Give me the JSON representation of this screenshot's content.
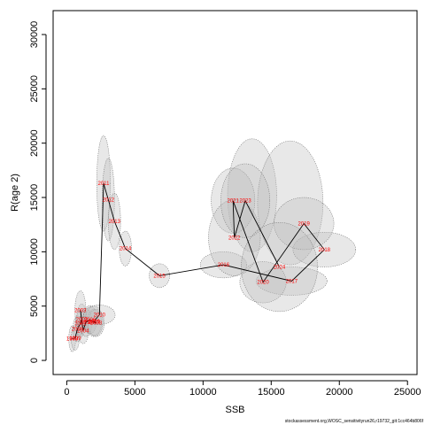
{
  "chart_data": {
    "type": "scatter",
    "xlabel": "SSB",
    "ylabel": "R(age 2)",
    "xlim": [
      -1000,
      25700
    ],
    "ylim": [
      -1300,
      32200
    ],
    "xticks": [
      0,
      5000,
      10000,
      15000,
      20000,
      25000
    ],
    "yticks": [
      0,
      5000,
      10000,
      15000,
      20000,
      25000,
      30000
    ],
    "grid": false,
    "colors": {
      "path": "#000000",
      "labels": "#ff0000",
      "ellipse_fill": "#bdbdbd",
      "ellipse_stroke": "#7a7a7a"
    },
    "points": [
      {
        "year": "1998",
        "ssb": 400,
        "r": 2000,
        "rx_sd": 250,
        "ry_sd": 1200
      },
      {
        "year": "1999",
        "ssb": 620,
        "r": 2050,
        "rx_sd": 300,
        "ry_sd": 1100
      },
      {
        "year": "2000",
        "ssb": 780,
        "r": 2900,
        "rx_sd": 320,
        "ry_sd": 1200
      },
      {
        "year": "2001",
        "ssb": 1000,
        "r": 3400,
        "rx_sd": 340,
        "ry_sd": 1300
      },
      {
        "year": "2002",
        "ssb": 1100,
        "r": 3800,
        "rx_sd": 350,
        "ry_sd": 1400
      },
      {
        "year": "2003",
        "ssb": 1000,
        "r": 4600,
        "rx_sd": 400,
        "ry_sd": 1800
      },
      {
        "year": "2004",
        "ssb": 1200,
        "r": 2750,
        "rx_sd": 400,
        "ry_sd": 1200
      },
      {
        "year": "2005",
        "ssb": 1400,
        "r": 3500,
        "rx_sd": 450,
        "ry_sd": 1300
      },
      {
        "year": "2006",
        "ssb": 1700,
        "r": 3750,
        "rx_sd": 500,
        "ry_sd": 1300
      },
      {
        "year": "2007",
        "ssb": 2000,
        "r": 3500,
        "rx_sd": 550,
        "ry_sd": 1200
      },
      {
        "year": "2008",
        "ssb": 2150,
        "r": 3450,
        "rx_sd": 600,
        "ry_sd": 1250
      },
      {
        "year": "2009",
        "ssb": 2000,
        "r": 3600,
        "rx_sd": 650,
        "ry_sd": 1400
      },
      {
        "year": "2010",
        "ssb": 2400,
        "r": 4200,
        "rx_sd": 1150,
        "ry_sd": 900
      },
      {
        "year": "2011",
        "ssb": 2700,
        "r": 16300,
        "rx_sd": 500,
        "ry_sd": 4400
      },
      {
        "year": "2012",
        "ssb": 3050,
        "r": 14800,
        "rx_sd": 450,
        "ry_sd": 3800
      },
      {
        "year": "2013",
        "ssb": 3500,
        "r": 12800,
        "rx_sd": 450,
        "ry_sd": 2600
      },
      {
        "year": "2014",
        "ssb": 4300,
        "r": 10300,
        "rx_sd": 450,
        "ry_sd": 1600
      },
      {
        "year": "2015",
        "ssb": 6800,
        "r": 7800,
        "rx_sd": 750,
        "ry_sd": 1100
      },
      {
        "year": "2016",
        "ssb": 11500,
        "r": 8800,
        "rx_sd": 1700,
        "ry_sd": 1200
      },
      {
        "year": "2017",
        "ssb": 16500,
        "r": 7300,
        "rx_sd": 2600,
        "ry_sd": 1300
      },
      {
        "year": "2018",
        "ssb": 18900,
        "r": 10200,
        "rx_sd": 2300,
        "ry_sd": 1600
      },
      {
        "year": "2019",
        "ssb": 17400,
        "r": 12600,
        "rx_sd": 2200,
        "ry_sd": 2400
      },
      {
        "year": "2020",
        "ssb": 14400,
        "r": 7200,
        "rx_sd": 1700,
        "ry_sd": 1900
      },
      {
        "year": "2021",
        "ssb": 12200,
        "r": 14700,
        "rx_sd": 1600,
        "ry_sd": 3000
      },
      {
        "year": "2022",
        "ssb": 12300,
        "r": 11300,
        "rx_sd": 1900,
        "ry_sd": 3500
      },
      {
        "year": "2023",
        "ssb": 13100,
        "r": 14700,
        "rx_sd": 1800,
        "ry_sd": 3400
      },
      {
        "year": "2024",
        "ssb": 15600,
        "r": 8600,
        "rx_sd": 2800,
        "ry_sd": 4100
      }
    ],
    "extra_ellipses": [
      {
        "ssb": 13600,
        "r": 15200,
        "rx_sd": 1800,
        "ry_sd": 5200
      },
      {
        "ssb": 16400,
        "r": 14500,
        "rx_sd": 2400,
        "ry_sd": 5700
      }
    ]
  },
  "footer": "stockassessment.org,WOSC_sensitivityrun26,r19732_git:1cc464b806f"
}
